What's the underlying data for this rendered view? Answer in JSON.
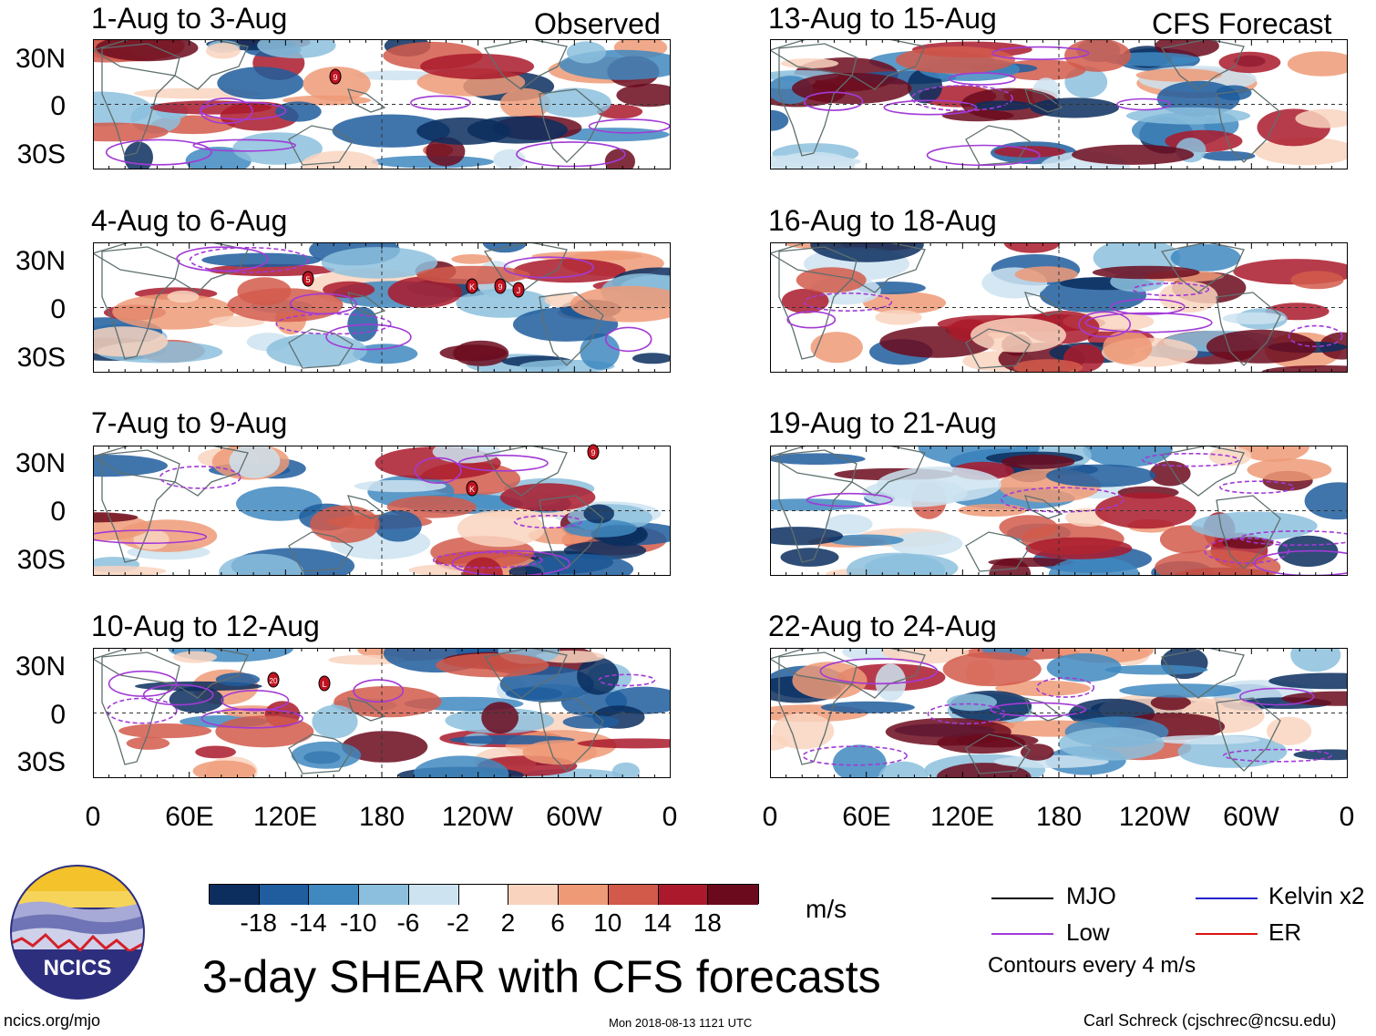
{
  "columns": {
    "observed_label": "Observed",
    "forecast_label": "CFS Forecast"
  },
  "panels_observed": [
    {
      "title": "1-Aug to 3-Aug"
    },
    {
      "title": "4-Aug to 6-Aug"
    },
    {
      "title": "7-Aug to 9-Aug"
    },
    {
      "title": "10-Aug to 12-Aug"
    }
  ],
  "panels_forecast": [
    {
      "title": "13-Aug to 15-Aug"
    },
    {
      "title": "16-Aug to 18-Aug"
    },
    {
      "title": "19-Aug to 21-Aug"
    },
    {
      "title": "22-Aug to 24-Aug"
    }
  ],
  "lat_labels": [
    "30N",
    "0",
    "30S"
  ],
  "lon_labels": [
    "0",
    "60E",
    "120E",
    "180",
    "120W",
    "60W",
    "0"
  ],
  "storm_markers": {
    "p0": [
      "9"
    ],
    "p1": [
      "5",
      "K",
      "9",
      "J"
    ],
    "p2": [
      "K",
      "9"
    ],
    "p3": [
      "20",
      "L"
    ]
  },
  "colorbar": {
    "ticks": [
      "-18",
      "-14",
      "-10",
      "-6",
      "-2",
      "2",
      "6",
      "10",
      "14",
      "18"
    ],
    "colors": [
      "#0b2e5e",
      "#1f5d9e",
      "#3f88c0",
      "#8cbfdd",
      "#cde3f0",
      "#ffffff",
      "#f9d3be",
      "#ef9a77",
      "#d25a4b",
      "#aa1a2c",
      "#6b0a1d"
    ],
    "unit": "m/s"
  },
  "legend": {
    "mjo": "MJO",
    "kelvin": "Kelvin x2",
    "low": "Low",
    "er": "ER",
    "contours": "Contours every 4 m/s",
    "colors": {
      "mjo": "#000000",
      "kelvin": "#2222cc",
      "low": "#a23ad6",
      "er": "#dd1111"
    }
  },
  "main_title": "3-day SHEAR with CFS forecasts",
  "logo_text": "NCICS",
  "footer": {
    "left": "ncics.org/mjo",
    "center": "Mon 2018-08-13 1121 UTC",
    "right": "Carl Schreck (cjschrec@ncsu.edu)"
  }
}
